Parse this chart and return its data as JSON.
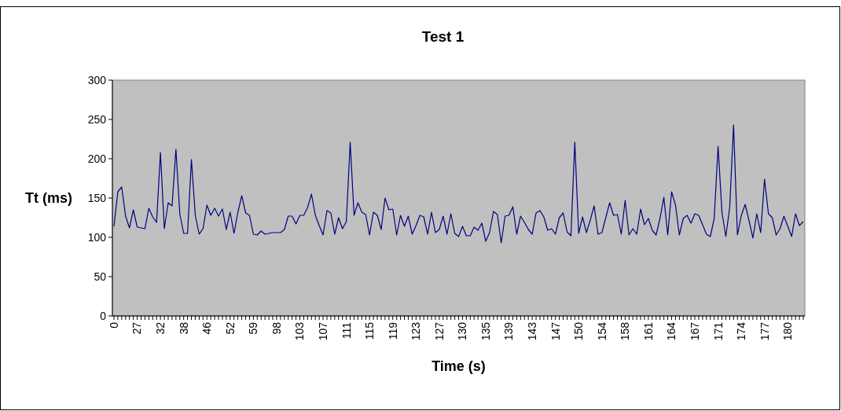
{
  "chart_data": {
    "type": "line",
    "title": "Test 1",
    "xlabel": "Time (s)",
    "ylabel": "Tt (ms)",
    "categories": [
      "0",
      null,
      null,
      null,
      null,
      null,
      "27",
      null,
      null,
      null,
      null,
      null,
      "32",
      null,
      null,
      null,
      null,
      null,
      "38",
      null,
      null,
      null,
      null,
      null,
      "46",
      null,
      null,
      null,
      null,
      null,
      "52",
      null,
      null,
      null,
      null,
      null,
      "59",
      null,
      null,
      null,
      null,
      null,
      "98",
      null,
      null,
      null,
      null,
      null,
      "103",
      null,
      null,
      null,
      null,
      null,
      "107",
      null,
      null,
      null,
      null,
      null,
      "111",
      null,
      null,
      null,
      null,
      null,
      "115",
      null,
      null,
      null,
      null,
      null,
      "119",
      null,
      null,
      null,
      null,
      null,
      "123",
      null,
      null,
      null,
      null,
      null,
      "127",
      null,
      null,
      null,
      null,
      null,
      "130",
      null,
      null,
      null,
      null,
      null,
      "135",
      null,
      null,
      null,
      null,
      null,
      "139",
      null,
      null,
      null,
      null,
      null,
      "143",
      null,
      null,
      null,
      null,
      null,
      "147",
      null,
      null,
      null,
      null,
      null,
      "150",
      null,
      null,
      null,
      null,
      null,
      "154",
      null,
      null,
      null,
      null,
      null,
      "158",
      null,
      null,
      null,
      null,
      null,
      "161",
      null,
      null,
      null,
      null,
      null,
      "164",
      null,
      null,
      null,
      null,
      null,
      "167",
      null,
      null,
      null,
      null,
      null,
      "171",
      null,
      null,
      null,
      null,
      null,
      "174",
      null,
      null,
      null,
      null,
      null,
      "177",
      null,
      null,
      null,
      null,
      null,
      "180",
      null,
      null,
      null,
      null
    ],
    "series": [
      {
        "color": "#000080",
        "values": [
          114,
          158,
          164,
          127,
          112,
          135,
          113,
          112,
          111,
          137,
          126,
          119,
          208,
          111,
          144,
          140,
          212,
          130,
          105,
          105,
          199,
          128,
          104,
          111,
          141,
          128,
          137,
          127,
          136,
          110,
          132,
          105,
          132,
          153,
          131,
          128,
          104,
          103,
          108,
          104,
          105,
          106,
          106,
          106,
          110,
          127,
          127,
          117,
          128,
          128,
          138,
          155,
          128,
          115,
          103,
          134,
          131,
          104,
          125,
          111,
          120,
          221,
          128,
          144,
          132,
          129,
          103,
          132,
          128,
          110,
          150,
          135,
          136,
          103,
          128,
          114,
          127,
          104,
          115,
          128,
          126,
          104,
          132,
          106,
          110,
          127,
          104,
          130,
          105,
          101,
          114,
          102,
          102,
          113,
          109,
          118,
          95,
          106,
          133,
          129,
          93,
          127,
          128,
          139,
          104,
          127,
          119,
          110,
          104,
          131,
          134,
          126,
          109,
          111,
          104,
          125,
          131,
          107,
          102,
          221,
          105,
          126,
          106,
          122,
          140,
          104,
          106,
          125,
          144,
          128,
          129,
          104,
          147,
          103,
          111,
          104,
          136,
          116,
          124,
          109,
          103,
          124,
          151,
          103,
          158,
          141,
          103,
          124,
          128,
          118,
          130,
          128,
          116,
          104,
          101,
          124,
          216,
          132,
          101,
          138,
          243,
          103,
          128,
          142,
          121,
          99,
          130,
          106,
          174,
          130,
          125,
          103,
          111,
          127,
          114,
          101,
          130,
          115,
          120
        ]
      }
    ],
    "ylim": [
      0,
      300
    ],
    "yticks": [
      0,
      50,
      100,
      150,
      200,
      250,
      300
    ],
    "grid": false
  }
}
